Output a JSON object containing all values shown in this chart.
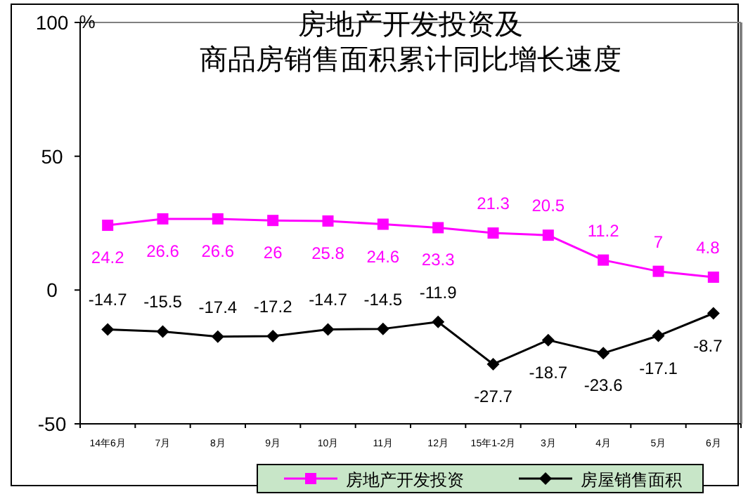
{
  "chart_data": {
    "type": "line",
    "title": "房地产开发投资及",
    "subtitle": "商品房销售面积累计同比增长速度",
    "ylabel": "%",
    "categories": [
      "14年6月",
      "7月",
      "8月",
      "9月",
      "10月",
      "11月",
      "12月",
      "15年1-2月",
      "3月",
      "4月",
      "5月",
      "6月"
    ],
    "series": [
      {
        "name": "房地产开发投资",
        "color": "#ff00ff",
        "marker": "square",
        "values": [
          24.2,
          26.6,
          26.6,
          26,
          25.8,
          24.6,
          23.3,
          21.3,
          20.5,
          11.2,
          7,
          4.8
        ]
      },
      {
        "name": "房屋销售面积",
        "color": "#000000",
        "marker": "diamond",
        "values": [
          -14.7,
          -15.5,
          -17.4,
          -17.2,
          -14.7,
          -14.5,
          -11.9,
          -27.7,
          -18.7,
          -23.6,
          -17.1,
          -8.7
        ]
      }
    ],
    "ylim": [
      -50,
      100
    ],
    "yticks": [
      -50,
      0,
      50,
      100
    ],
    "data_labels": true,
    "legend": "bottom",
    "grid": false
  }
}
